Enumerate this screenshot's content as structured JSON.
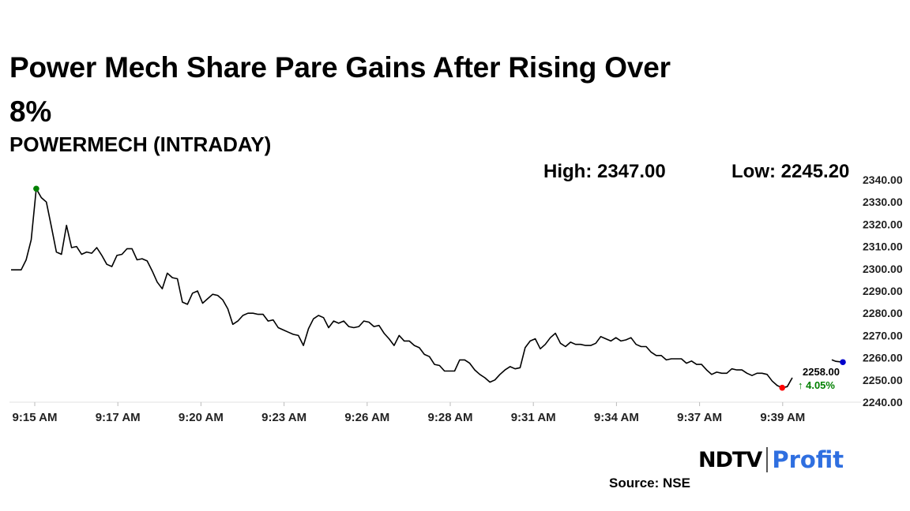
{
  "headline": "Power Mech Share Pare Gains After Rising Over 8%",
  "subtitle": "POWERMECH (INTRADAY)",
  "stats": {
    "high": "High: 2347.00",
    "low": "Low: 2245.20"
  },
  "last_price": "2258.00",
  "change": "↑ 4.05%",
  "brand": {
    "ndtv": "NDTV",
    "profit": "Profit"
  },
  "source": "Source: NSE",
  "colors": {
    "line": "#000000",
    "high_marker": "#008000",
    "low_marker": "#ff0000",
    "last_marker": "#0000cc",
    "change": "#008000",
    "profit": "#2f6fe0"
  },
  "chart_data": {
    "type": "line",
    "title": "POWERMECH (INTRADAY)",
    "ylim": [
      2240,
      2340
    ],
    "yticks": [
      "2340.00",
      "2330.00",
      "2320.00",
      "2310.00",
      "2300.00",
      "2290.00",
      "2280.00",
      "2270.00",
      "2260.00",
      "2250.00",
      "2240.00"
    ],
    "xticks": [
      "9:15 AM",
      "9:17 AM",
      "9:20 AM",
      "9:23 AM",
      "9:26 AM",
      "9:28 AM",
      "9:31 AM",
      "9:34 AM",
      "9:37 AM",
      "9:39 AM"
    ],
    "grid": false,
    "series": [
      {
        "values": [
          2299.5,
          2299.5,
          2299.5,
          2304,
          2313,
          2336,
          2332,
          2330,
          2319,
          2307.5,
          2306.5,
          2319.5,
          2309.5,
          2310,
          2306.5,
          2307.5,
          2307,
          2309.5,
          2306,
          2302,
          2301,
          2306,
          2306.5,
          2309,
          2309,
          2304,
          2304.5,
          2303.5,
          2299,
          2294,
          2291,
          2298,
          2296,
          2295.5,
          2285,
          2284,
          2289,
          2290,
          2284.5,
          2286.5,
          2288.5,
          2288,
          2286,
          2282,
          2275,
          2276.5,
          2279,
          2280,
          2280,
          2279.5,
          2279.5,
          2276.5,
          2277,
          2273.5,
          2272.5,
          2271.5,
          2270.5,
          2270,
          2265.5,
          2273,
          2277.5,
          2279,
          2278,
          2273.5,
          2276.5,
          2275.5,
          2276.5,
          2274,
          2273.5,
          2274,
          2276.5,
          2276,
          2274,
          2274.5,
          2271,
          2268.5,
          2265.5,
          2270,
          2267.5,
          2267.5,
          2265.5,
          2264.5,
          2261.5,
          2260.5,
          2257,
          2256.5,
          2254,
          2254,
          2254,
          2259,
          2259,
          2257.5,
          2254.5,
          2252.5,
          2251,
          2249,
          2250,
          2252.5,
          2254.5,
          2256,
          2255,
          2255.5,
          2264.5,
          2267.5,
          2268.5,
          2264,
          2266,
          2269,
          2271,
          2266.5,
          2265,
          2267,
          2266,
          2266,
          2265.5,
          2265.5,
          2266.5,
          2269.5,
          2268.5,
          2267.5,
          2269,
          2267.5,
          2268,
          2269,
          2266,
          2265,
          2265,
          2262.5,
          2261,
          2261,
          2259,
          2259.5,
          2259.5,
          2259.5,
          2257.5,
          2258.5,
          2257,
          2257,
          2254.5,
          2252.5,
          2253.5,
          2253,
          2253,
          2255,
          2254.5,
          2254.5,
          2253,
          2252,
          2253,
          2253,
          2252.5,
          2249.5,
          2247.5,
          2246.5,
          2247,
          2251
        ]
      }
    ]
  }
}
